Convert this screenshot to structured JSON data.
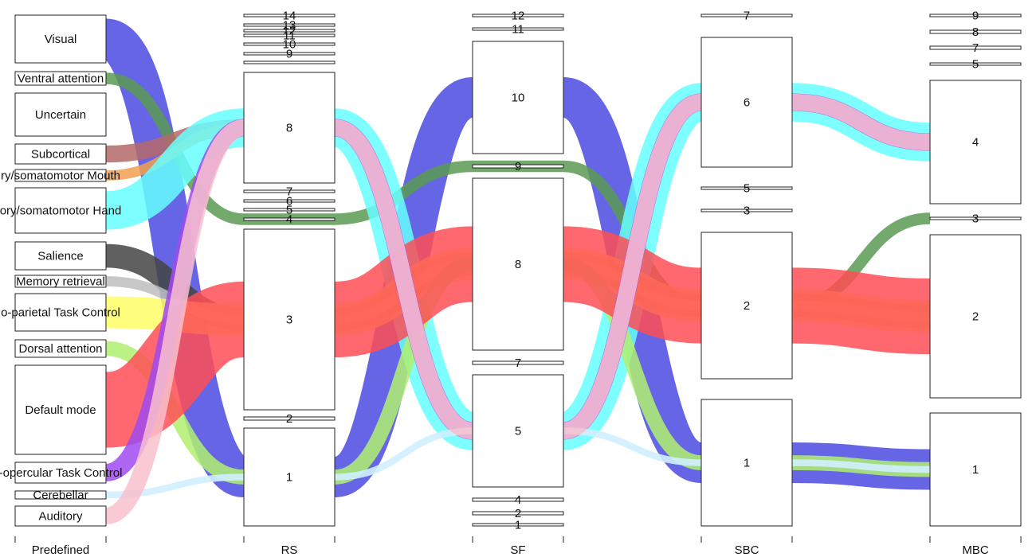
{
  "chart_data": {
    "type": "alluvial",
    "axes": [
      "Predefined",
      "RS",
      "SF",
      "SBC",
      "MBC"
    ],
    "colors": {
      "visual": "#4a4ae0",
      "ventral_attention": "#5a9a52",
      "uncertain": "#ffffe8",
      "subcortical": "#b56868",
      "somatomotor_mouth": "#f0a050",
      "somatomotor_hand": "#66ffff",
      "salience": "#444444",
      "memory_retrieval": "#bdbdbd",
      "fronto_parietal": "#ffff66",
      "dorsal_attention": "#b0f070",
      "default_mode": "#ff4d55",
      "cingulo_opercular": "#a04af0",
      "cerebellar": "#d0f0ff",
      "auditory": "#f8c0cc"
    },
    "columns": [
      {
        "name": "Predefined",
        "nodes": [
          {
            "label": "Visual",
            "key": "visual"
          },
          {
            "label": "Ventral attention",
            "key": "ventral_attention"
          },
          {
            "label": "Uncertain",
            "key": "uncertain"
          },
          {
            "label": "Subcortical",
            "key": "subcortical"
          },
          {
            "label": "ry/somatomotor Mouth",
            "key": "somatomotor_mouth"
          },
          {
            "label": "ory/somatomotor Hand",
            "key": "somatomotor_hand"
          },
          {
            "label": "Salience",
            "key": "salience"
          },
          {
            "label": "Memory retrieval",
            "key": "memory_retrieval"
          },
          {
            "label": "o-parietal Task Control",
            "key": "fronto_parietal"
          },
          {
            "label": "Dorsal attention",
            "key": "dorsal_attention"
          },
          {
            "label": "Default mode",
            "key": "default_mode"
          },
          {
            "label": "-opercular Task Control",
            "key": "cingulo_opercular"
          },
          {
            "label": "Cerebellar",
            "key": "cerebellar"
          },
          {
            "label": "Auditory",
            "key": "auditory"
          }
        ]
      },
      {
        "name": "RS",
        "nodes": [
          {
            "label": "14"
          },
          {
            "label": "13"
          },
          {
            "label": "12"
          },
          {
            "label": "11"
          },
          {
            "label": "10"
          },
          {
            "label": "9"
          },
          {
            "label": "8"
          },
          {
            "label": "7"
          },
          {
            "label": "6"
          },
          {
            "label": "5"
          },
          {
            "label": "4"
          },
          {
            "label": "3"
          },
          {
            "label": "2"
          },
          {
            "label": "1"
          }
        ]
      },
      {
        "name": "SF",
        "nodes": [
          {
            "label": "12"
          },
          {
            "label": "11"
          },
          {
            "label": "10"
          },
          {
            "label": "9"
          },
          {
            "label": "8"
          },
          {
            "label": "7"
          },
          {
            "label": "5"
          },
          {
            "label": "4"
          },
          {
            "label": "2"
          },
          {
            "label": "1"
          }
        ]
      },
      {
        "name": "SBC",
        "nodes": [
          {
            "label": "7"
          },
          {
            "label": "6"
          },
          {
            "label": "5"
          },
          {
            "label": "3"
          },
          {
            "label": "2"
          },
          {
            "label": "1"
          }
        ]
      },
      {
        "name": "MBC",
        "nodes": [
          {
            "label": "9"
          },
          {
            "label": "8"
          },
          {
            "label": "7"
          },
          {
            "label": "5"
          },
          {
            "label": "4"
          },
          {
            "label": "3"
          },
          {
            "label": "2"
          },
          {
            "label": "1"
          }
        ]
      }
    ],
    "flows": [
      {
        "key": "visual",
        "path": [
          "Visual",
          "1",
          "10",
          "1",
          "1"
        ]
      },
      {
        "key": "ventral_attention",
        "path": [
          "Ventral attention",
          "4",
          "9",
          "2",
          "3"
        ]
      },
      {
        "key": "subcortical",
        "path": [
          "Subcortical",
          "8",
          "5",
          "6",
          "4"
        ]
      },
      {
        "key": "somatomotor_mouth",
        "path": [
          "ry/somatomotor Mouth",
          "8",
          "5",
          "6",
          "4"
        ]
      },
      {
        "key": "somatomotor_hand",
        "path": [
          "ory/somatomotor Hand",
          "8",
          "5",
          "6",
          "4"
        ]
      },
      {
        "key": "salience",
        "path": [
          "Salience",
          "3",
          "8",
          "2",
          "2"
        ]
      },
      {
        "key": "memory_retrieval",
        "path": [
          "Memory retrieval",
          "3",
          "8",
          "2",
          "2"
        ]
      },
      {
        "key": "fronto_parietal",
        "path": [
          "o-parietal Task Control",
          "3",
          "8",
          "2",
          "2"
        ]
      },
      {
        "key": "dorsal_attention",
        "path": [
          "Dorsal attention",
          "1",
          "8",
          "1",
          "1"
        ]
      },
      {
        "key": "default_mode",
        "path": [
          "Default mode",
          "3",
          "8",
          "2",
          "2"
        ]
      },
      {
        "key": "cingulo_opercular",
        "path": [
          "-opercular Task Control",
          "8",
          "5",
          "6",
          "4"
        ]
      },
      {
        "key": "cerebellar",
        "path": [
          "Cerebellar",
          "1",
          "5",
          "1",
          "1"
        ]
      },
      {
        "key": "auditory",
        "path": [
          "Auditory",
          "8",
          "5",
          "6",
          "4"
        ]
      }
    ]
  }
}
